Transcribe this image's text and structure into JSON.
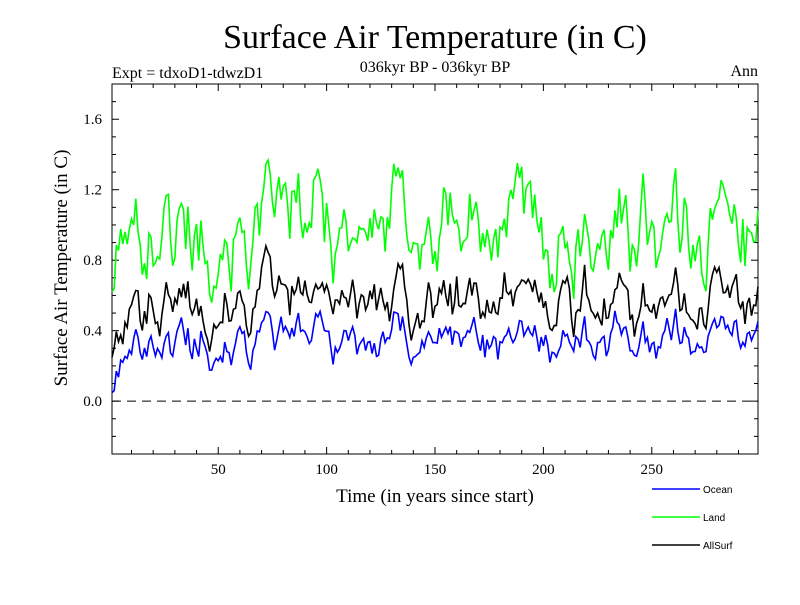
{
  "chart_data": {
    "type": "line",
    "title": "Surface Air Temperature (in C)",
    "subtitle": "036kyr BP - 036kyr BP",
    "left_label": "Expt = tdxoD1-tdwzD1",
    "right_label": "Ann",
    "xlabel": "Time (in years since start)",
    "ylabel": "Surface Air Temperature (in C)",
    "xlim": [
      1,
      299
    ],
    "ylim": [
      -0.3,
      1.8
    ],
    "xticks": [
      50,
      100,
      150,
      200,
      250
    ],
    "yticks": [
      0.0,
      0.4,
      0.8,
      1.2,
      1.6
    ],
    "ytick_labels": [
      "0.0",
      "0.4",
      "0.8",
      "1.2",
      "1.6"
    ],
    "reference_line": 0.0,
    "x": {
      "start": 1,
      "end": 299,
      "step": 1
    },
    "series": [
      {
        "name": "Ocean",
        "color": "#0000ff",
        "mean": 0.36,
        "amplitude": 0.18,
        "seed": 11
      },
      {
        "name": "Land",
        "color": "#00ff00",
        "mean": 1.0,
        "amplitude": 0.38,
        "seed": 23
      },
      {
        "name": "AllSurf",
        "color": "#000000",
        "mean": 0.58,
        "amplitude": 0.24,
        "seed": 37
      }
    ]
  }
}
